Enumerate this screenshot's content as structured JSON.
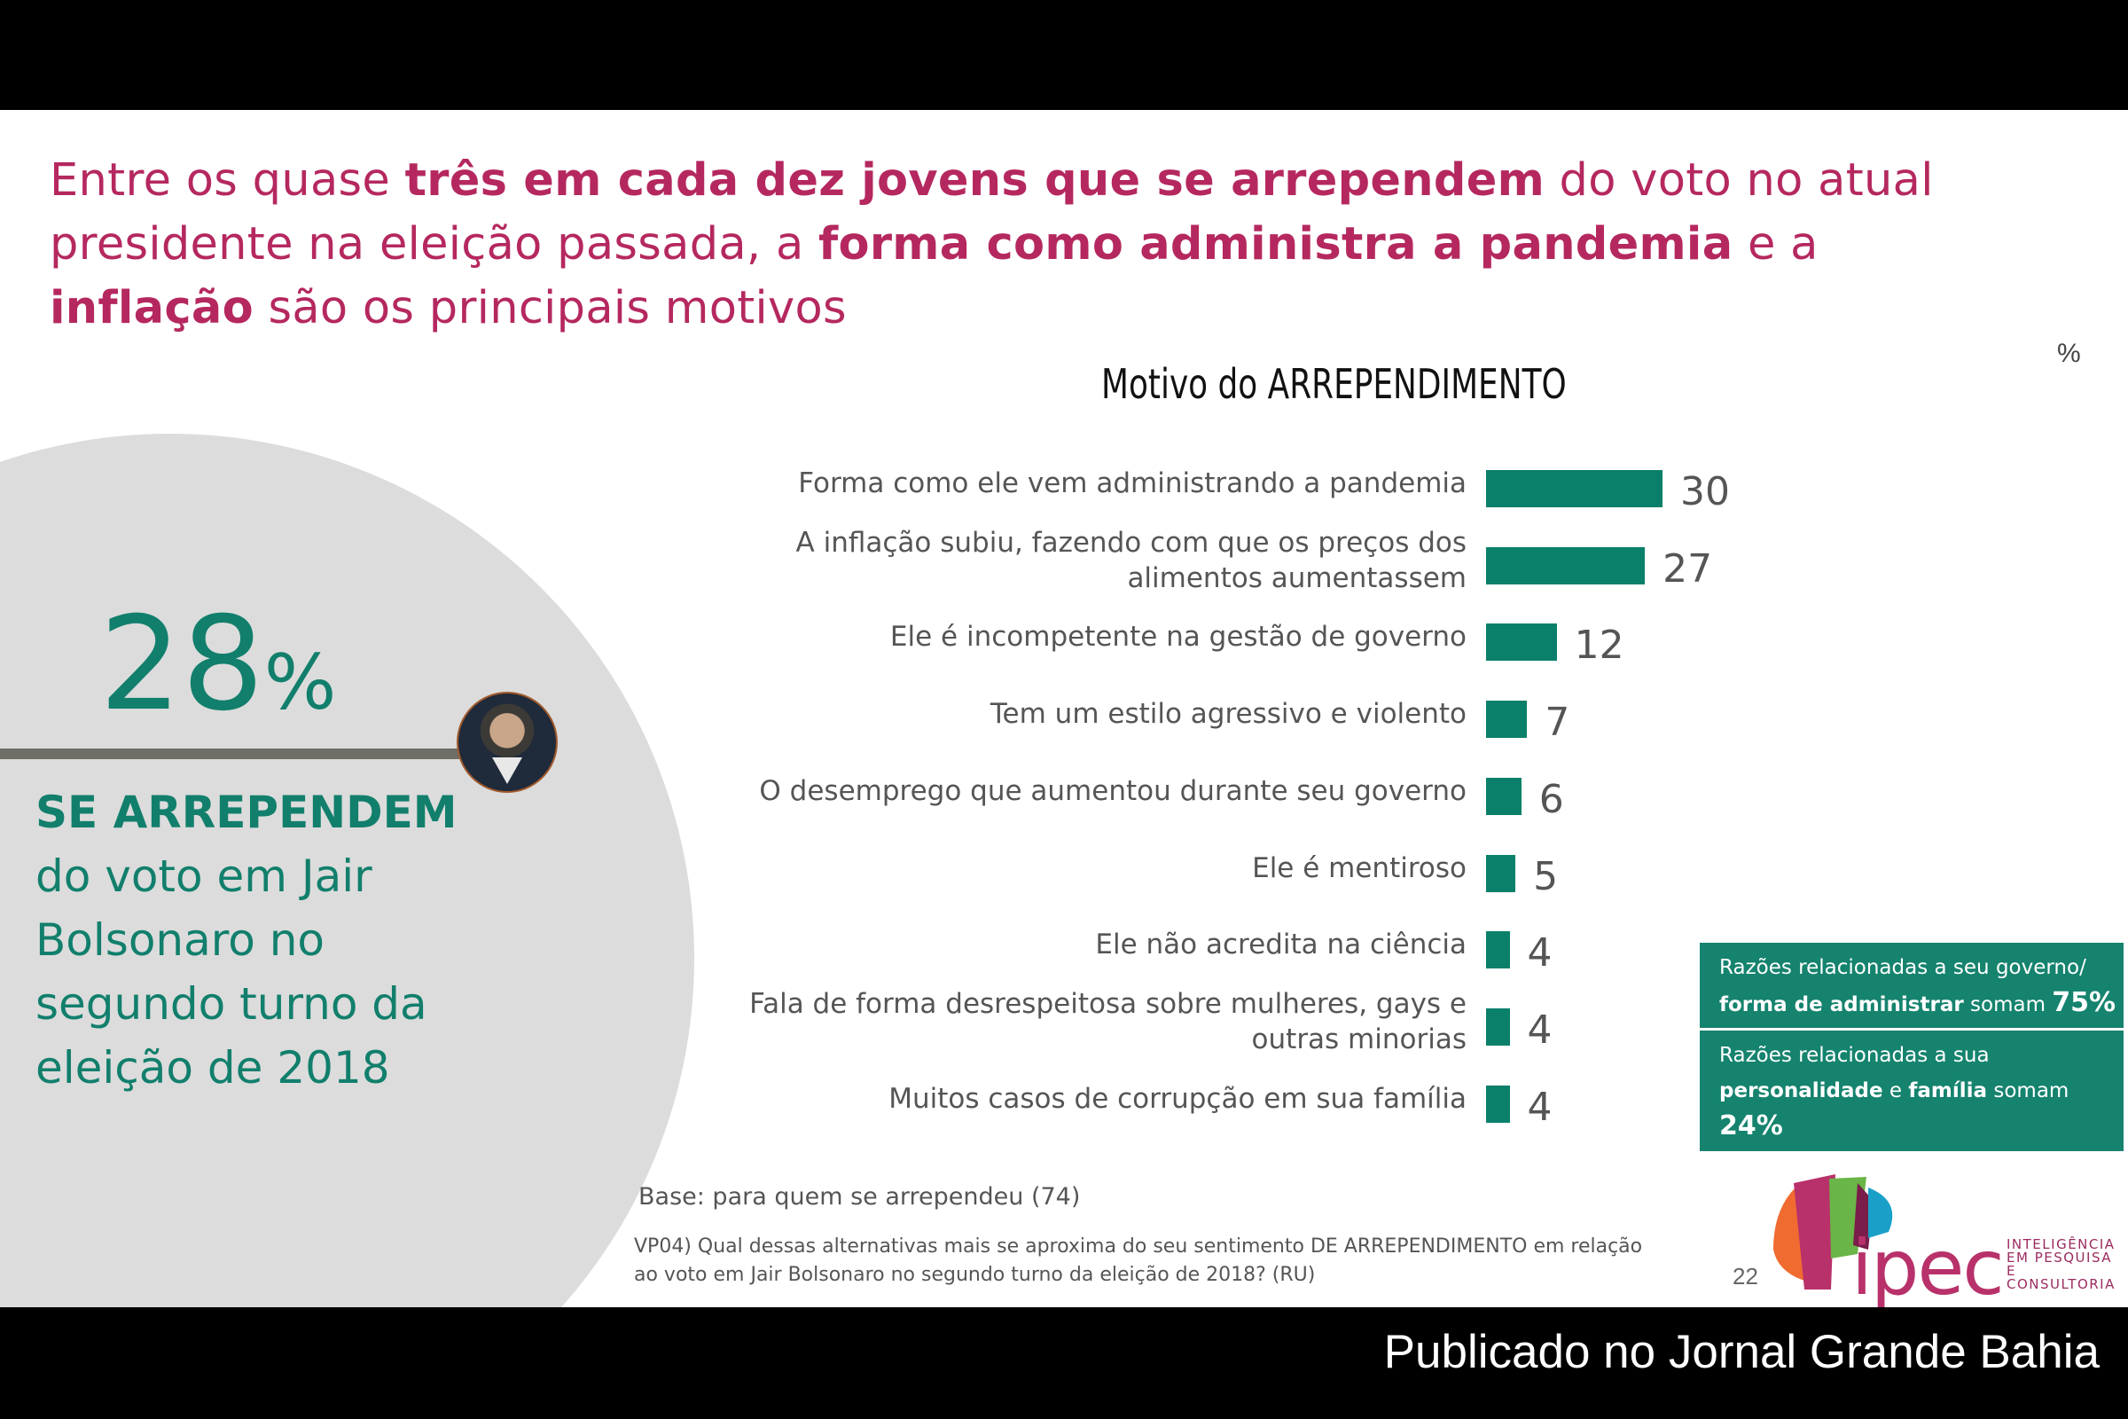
{
  "headline": {
    "segments": [
      {
        "text": "Entre os quase ",
        "bold": false
      },
      {
        "text": "três em cada dez jovens que se arrependem",
        "bold": true
      },
      {
        "text": " do voto no atual presidente na eleição passada, a ",
        "bold": false
      },
      {
        "text": "forma como administra a pandemia",
        "bold": true
      },
      {
        "text": " e a ",
        "bold": false
      },
      {
        "text": "inflação",
        "bold": true
      },
      {
        "text": " são os principais motivos",
        "bold": false
      }
    ]
  },
  "unit_label": "%",
  "highlight": {
    "value": "28",
    "symbol": "%",
    "strong_text": "SE ARREPENDEM",
    "rest_text": "do voto em Jair Bolsonaro no segundo turno da eleição de 2018",
    "avatar_icon": "person-photo-icon"
  },
  "chart_data": {
    "type": "bar",
    "orientation": "horizontal",
    "title": "Motivo do ARREPENDIMENTO",
    "unit": "%",
    "categories": [
      "Forma como ele vem administrando a pandemia",
      "A inflação subiu, fazendo com que os preços dos alimentos aumentassem",
      "Ele é incompetente na gestão de governo",
      "Tem um estilo agressivo e violento",
      "O desemprego que aumentou durante seu governo",
      "Ele é mentiroso",
      "Ele não acredita na ciência",
      "Fala de forma desrespeitosa sobre mulheres, gays e outras minorias",
      "Muitos casos de corrupção em sua família"
    ],
    "values": [
      30,
      27,
      12,
      7,
      6,
      5,
      4,
      4,
      4
    ],
    "color": "#0a806a",
    "xlim": [
      0,
      30
    ],
    "grid": false,
    "axis_visible": false,
    "data_labels": true
  },
  "summaries": [
    {
      "line1": "Razões relacionadas a seu governo/",
      "bold1": "forma de administrar",
      "mid": " somam ",
      "value": "75%"
    },
    {
      "line1": "Razões relacionadas a sua",
      "bold1": "personalidade",
      "mid1": " e ",
      "bold2": "família",
      "mid": " somam ",
      "value": "24%"
    }
  ],
  "footnote": {
    "base": "Base: para quem se arrependeu (74)",
    "question": "VP04) Qual dessas alternativas mais se aproxima do seu sentimento DE ARREPENDIMENTO em relação ao voto em Jair Bolsonaro no segundo turno da eleição de 2018? (RU)"
  },
  "page_number": "22",
  "logo": {
    "word": "ipec",
    "tagline": [
      "INTELIGÊNCIA",
      "EM PESQUISA",
      "E CONSULTORIA"
    ],
    "colors": [
      "#f06b2f",
      "#b8316a",
      "#7a1d4a",
      "#6ab547",
      "#1aa0c8"
    ]
  },
  "footer_credit": "Publicado no Jornal Grande Bahia"
}
